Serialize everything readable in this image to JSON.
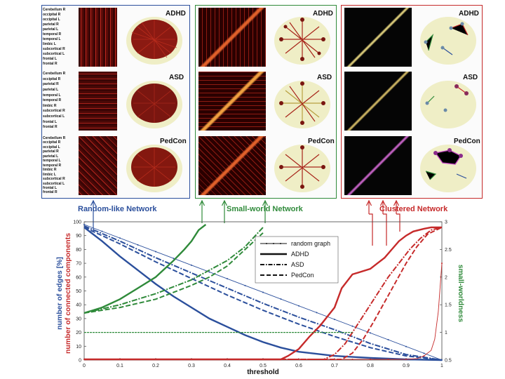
{
  "groups": [
    "ADHD",
    "ASD",
    "PedCon"
  ],
  "region_labels": {
    "adhd": [
      "Cerebellum R",
      "occipital R",
      "occipital L",
      "parietal R",
      "parietal L",
      "temporal R",
      "temporal L",
      "limbic L",
      "subcortical R",
      "subcortical L",
      "frontal L",
      "frontal R"
    ],
    "asd": [
      "Cerebellum R",
      "occipital R",
      "parietal R",
      "parietal L",
      "temporal L",
      "temporal R",
      "limbic R",
      "subcortical R",
      "subcortical L",
      "frontal L",
      "frontal R"
    ],
    "pedcon": [
      "Cerebellum R",
      "occipital R",
      "occipital L",
      "parietal R",
      "parietal L",
      "temporal L",
      "temporal R",
      "limbic R",
      "limbic L",
      "subcortical R",
      "subcortical L",
      "frontal L",
      "frontal R"
    ]
  },
  "network_titles": {
    "random": "Random-like Network",
    "small_world": "Small-world Network",
    "clustered": "Clustered Network"
  },
  "colors": {
    "blue": "#2b4f9c",
    "green": "#2f8a3a",
    "red": "#c62a2a"
  },
  "chart_data": {
    "type": "line",
    "xlabel": "threshold",
    "ylabel_left_1": "number of edges [%]",
    "ylabel_left_2": "number of connected components",
    "ylabel_right": "small-worldness",
    "xlim": [
      0,
      1
    ],
    "ylim_left": [
      0,
      100
    ],
    "ylim_right": [
      0.5,
      3
    ],
    "x_ticks": [
      "0",
      "0.1",
      "0.2",
      "0.3",
      "0.4",
      "0.5",
      "0.6",
      "0.7",
      "0.8",
      "0.9",
      "1"
    ],
    "y_ticks_left": [
      "0",
      "10",
      "20",
      "30",
      "40",
      "50",
      "60",
      "70",
      "80",
      "90",
      "100"
    ],
    "y_ticks_right": [
      "0.5",
      "1",
      "1.5",
      "2",
      "2.5",
      "3"
    ],
    "legend": {
      "random": "random graph",
      "adhd": "ADHD",
      "asd": "ASD",
      "pedcon": "PedCon"
    },
    "edges": {
      "random": {
        "x": [
          0,
          1
        ],
        "y": [
          98,
          0
        ]
      },
      "adhd": {
        "x": [
          0,
          0.05,
          0.1,
          0.15,
          0.2,
          0.25,
          0.3,
          0.35,
          0.4,
          0.45,
          0.5,
          0.55,
          0.6,
          0.7,
          0.8,
          0.9,
          1.0
        ],
        "y": [
          96,
          86,
          75,
          65,
          55,
          46,
          38,
          30,
          24,
          18,
          13,
          9,
          6,
          3,
          1.5,
          0.5,
          0
        ]
      },
      "asd": {
        "x": [
          0,
          0.1,
          0.2,
          0.3,
          0.4,
          0.5,
          0.6,
          0.7,
          0.8,
          0.9,
          1.0
        ],
        "y": [
          97,
          86,
          74,
          63,
          52,
          41,
          31,
          22,
          12,
          4,
          0
        ]
      },
      "pedcon": {
        "x": [
          0,
          0.1,
          0.2,
          0.3,
          0.4,
          0.5,
          0.6,
          0.7,
          0.8,
          0.9,
          1.0
        ],
        "y": [
          96,
          84,
          71,
          59,
          47,
          36,
          26,
          17,
          9,
          3,
          0
        ]
      }
    },
    "components": {
      "random": {
        "x": [
          0,
          0.9,
          0.93,
          0.95,
          0.97,
          0.98,
          0.99,
          1.0
        ],
        "y": [
          0.5,
          0.5,
          1,
          3,
          7,
          15,
          35,
          70
        ]
      },
      "adhd": {
        "x": [
          0,
          0.55,
          0.57,
          0.6,
          0.63,
          0.66,
          0.7,
          0.72,
          0.75,
          0.8,
          0.82,
          0.84,
          0.86,
          0.88,
          0.9,
          0.92,
          0.95,
          0.97,
          1.0
        ],
        "y": [
          0.5,
          0.5,
          3,
          8,
          17,
          25,
          38,
          52,
          62,
          66,
          70,
          74,
          80,
          86,
          90,
          93,
          95,
          96,
          96
        ]
      },
      "asd": {
        "x": [
          0,
          0.67,
          0.7,
          0.73,
          0.76,
          0.79,
          0.82,
          0.85,
          0.88,
          0.91,
          0.94,
          0.97,
          1.0
        ],
        "y": [
          0.5,
          0.5,
          4,
          12,
          24,
          36,
          48,
          60,
          70,
          80,
          88,
          94,
          96
        ]
      },
      "pedcon": {
        "x": [
          0,
          0.72,
          0.75,
          0.78,
          0.81,
          0.84,
          0.87,
          0.9,
          0.93,
          0.96,
          1.0
        ],
        "y": [
          0.5,
          0.5,
          5,
          15,
          28,
          42,
          56,
          70,
          82,
          91,
          96
        ]
      }
    },
    "small_worldness": {
      "reference": {
        "x": [
          0,
          0.75
        ],
        "y": [
          1,
          1
        ]
      },
      "adhd": {
        "x": [
          0,
          0.05,
          0.1,
          0.15,
          0.2,
          0.25,
          0.28,
          0.3,
          0.32,
          0.34
        ],
        "y": [
          1.35,
          1.45,
          1.6,
          1.8,
          2.0,
          2.3,
          2.5,
          2.65,
          2.85,
          2.95
        ]
      },
      "asd": {
        "x": [
          0,
          0.1,
          0.2,
          0.3,
          0.4,
          0.45,
          0.5
        ],
        "y": [
          1.35,
          1.5,
          1.7,
          1.95,
          2.3,
          2.55,
          2.9
        ]
      },
      "pedcon": {
        "x": [
          0,
          0.1,
          0.2,
          0.3,
          0.35,
          0.4,
          0.45,
          0.5
        ],
        "y": [
          1.35,
          1.45,
          1.6,
          1.85,
          2.0,
          2.2,
          2.5,
          2.8
        ]
      }
    }
  }
}
